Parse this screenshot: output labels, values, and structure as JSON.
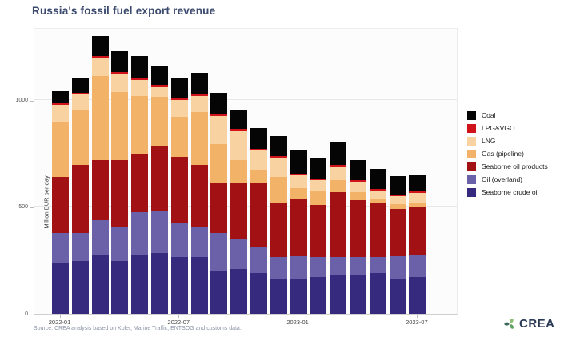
{
  "source_note": "Source: CREA analysis based on Kpler, Marine Traffic, ENTSOG and customs data.",
  "logo": {
    "text": "CREA",
    "icon": "crea-swirl-icon"
  },
  "chart_data": {
    "type": "bar",
    "stacked": true,
    "title": "Russia's fossil fuel export revenue",
    "xlabel": "",
    "ylabel": "Million EUR per day",
    "ylim": [
      0,
      1338
    ],
    "yticks": [
      0,
      500,
      1000
    ],
    "grid": true,
    "legend_position": "right",
    "xticks": [
      "2022-01",
      "2022-07",
      "2023-01",
      "2023-07"
    ],
    "categories": [
      "2022-01",
      "2022-02",
      "2022-03",
      "2022-04",
      "2022-05",
      "2022-06",
      "2022-07",
      "2022-08",
      "2022-09",
      "2022-10",
      "2022-11",
      "2022-12",
      "2023-01",
      "2023-02",
      "2023-03",
      "2023-04",
      "2023-05",
      "2023-06",
      "2023-07"
    ],
    "series": [
      {
        "name": "Seaborne crude oil",
        "color": "#362a7e",
        "values": [
          239,
          246,
          277,
          246,
          277,
          284,
          265,
          265,
          203,
          209,
          190,
          165,
          165,
          172,
          178,
          184,
          190,
          165,
          172
        ]
      },
      {
        "name": "Oil (overland)",
        "color": "#6a61a8",
        "values": [
          138,
          131,
          162,
          156,
          199,
          199,
          156,
          143,
          174,
          137,
          124,
          100,
          106,
          93,
          87,
          81,
          75,
          106,
          100
        ]
      },
      {
        "name": "Seaborne oil products",
        "color": "#a21114",
        "values": [
          261,
          317,
          280,
          317,
          267,
          299,
          311,
          286,
          236,
          267,
          299,
          255,
          263,
          242,
          305,
          267,
          255,
          218,
          224
        ]
      },
      {
        "name": "Gas (pipeline)",
        "color": "#f2b267",
        "values": [
          261,
          255,
          392,
          317,
          274,
          230,
          187,
          249,
          181,
          106,
          56,
          118,
          54,
          68,
          56,
          37,
          19,
          25,
          25
        ]
      },
      {
        "name": "LNG",
        "color": "#f8d2a0",
        "values": [
          75,
          75,
          85,
          85,
          73,
          48,
          79,
          73,
          129,
          135,
          92,
          92,
          60,
          48,
          60,
          48,
          36,
          36,
          42
        ]
      },
      {
        "name": "LPG&VGO",
        "color": "#d0121a",
        "values": [
          8,
          8,
          8,
          8,
          8,
          8,
          8,
          8,
          8,
          8,
          8,
          8,
          8,
          8,
          8,
          8,
          8,
          8,
          8
        ]
      },
      {
        "name": "Coal",
        "color": "#050505",
        "values": [
          58,
          67,
          93,
          99,
          106,
          93,
          93,
          100,
          100,
          93,
          100,
          93,
          106,
          100,
          106,
          93,
          93,
          87,
          81
        ]
      }
    ],
    "legend": [
      {
        "label": "Coal",
        "color": "#050505"
      },
      {
        "label": "LPG&VGO",
        "color": "#d0121a"
      },
      {
        "label": "LNG",
        "color": "#f8d2a0"
      },
      {
        "label": "Gas (pipeline)",
        "color": "#f2b267"
      },
      {
        "label": "Seaborne oil products",
        "color": "#a21114"
      },
      {
        "label": "Oil (overland)",
        "color": "#6a61a8"
      },
      {
        "label": "Seaborne crude oil",
        "color": "#362a7e"
      }
    ]
  }
}
